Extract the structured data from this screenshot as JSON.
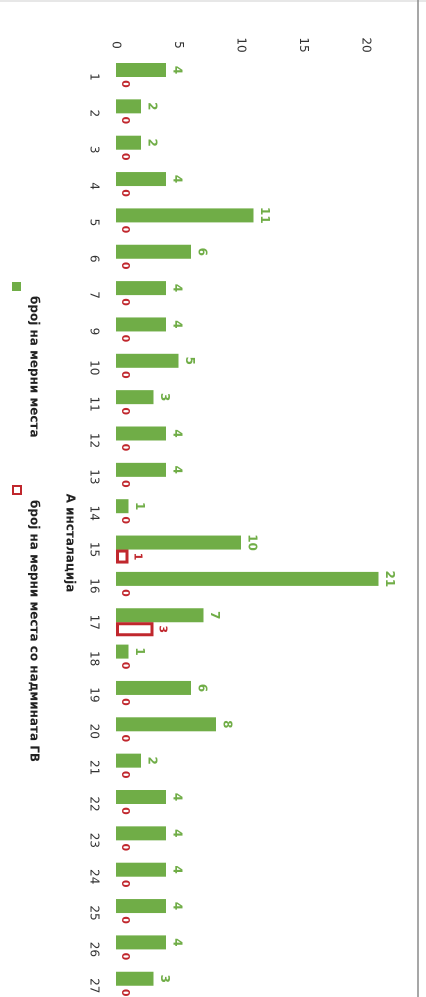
{
  "chart_data": {
    "type": "bar",
    "orientation": "rotated-90-clockwise",
    "xlabel": "А инсталација",
    "ylabel": "",
    "ylim": [
      0,
      20
    ],
    "yticks": [
      0,
      5,
      10,
      15,
      20
    ],
    "categories": [
      "1",
      "2",
      "3",
      "4",
      "5",
      "6",
      "7",
      "9",
      "10",
      "11",
      "12",
      "13",
      "14",
      "15",
      "16",
      "17",
      "18",
      "19",
      "20",
      "21",
      "22",
      "23",
      "24",
      "25",
      "26",
      "27"
    ],
    "series": [
      {
        "name": "број на мерни места",
        "color": "#70ad47",
        "style": "filled",
        "values": [
          4,
          2,
          2,
          4,
          11,
          6,
          4,
          4,
          5,
          3,
          4,
          4,
          1,
          10,
          21,
          7,
          1,
          6,
          8,
          2,
          4,
          4,
          4,
          4,
          4,
          3
        ]
      },
      {
        "name": "број на мерни места со надмината ГВ",
        "color": "#c0272d",
        "style": "outline",
        "values": [
          0,
          0,
          0,
          0,
          0,
          0,
          0,
          0,
          0,
          0,
          0,
          0,
          0,
          1,
          0,
          3,
          0,
          0,
          0,
          0,
          0,
          0,
          0,
          0,
          0,
          0
        ]
      }
    ],
    "legend_position": "bottom",
    "grid": false,
    "data_labels": true
  }
}
